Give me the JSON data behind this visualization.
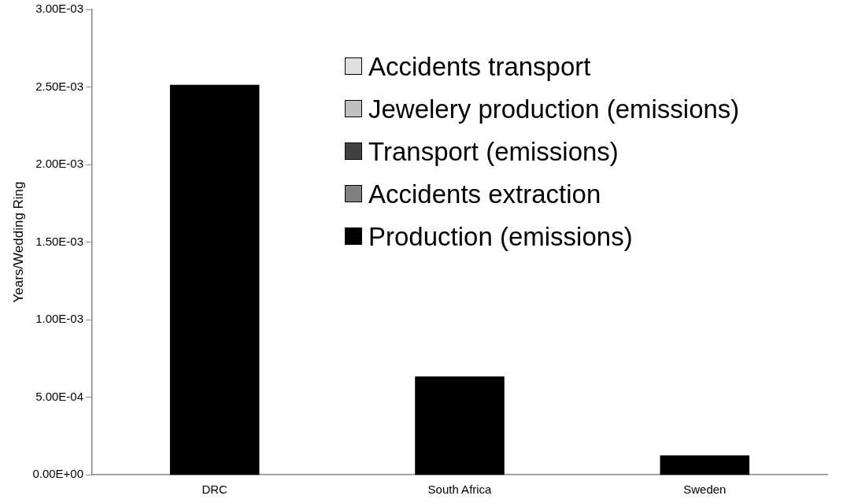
{
  "chart_data": {
    "type": "bar",
    "stacked": true,
    "ylabel": "Years/Wedding Ring",
    "categories": [
      "DRC",
      "South Africa",
      "Sweden"
    ],
    "series": [
      {
        "name": "Production (emissions)",
        "color": "#000000",
        "values": [
          0.00251,
          0.00063,
          0.00012
        ]
      },
      {
        "name": "Accidents extraction",
        "color": "#808080",
        "values": [
          0,
          0,
          0
        ]
      },
      {
        "name": "Transport (emissions)",
        "color": "#404040",
        "values": [
          0,
          0,
          0
        ]
      },
      {
        "name": "Jewelery production (emissions)",
        "color": "#c0c0c0",
        "values": [
          0,
          0,
          0
        ]
      },
      {
        "name": "Accidents transport",
        "color": "#e0e0e0",
        "values": [
          0,
          0,
          0
        ]
      }
    ],
    "ylim": [
      0,
      0.003
    ],
    "yticks": [
      {
        "value": 0,
        "label": "0.00E+00"
      },
      {
        "value": 0.0005,
        "label": "5.00E-04"
      },
      {
        "value": 0.001,
        "label": "1.00E-03"
      },
      {
        "value": 0.0015,
        "label": "1.50E-03"
      },
      {
        "value": 0.002,
        "label": "2.00E-03"
      },
      {
        "value": 0.0025,
        "label": "2.50E-03"
      },
      {
        "value": 0.003,
        "label": "3.00E-03"
      }
    ],
    "grid": false,
    "legend": "top right"
  }
}
